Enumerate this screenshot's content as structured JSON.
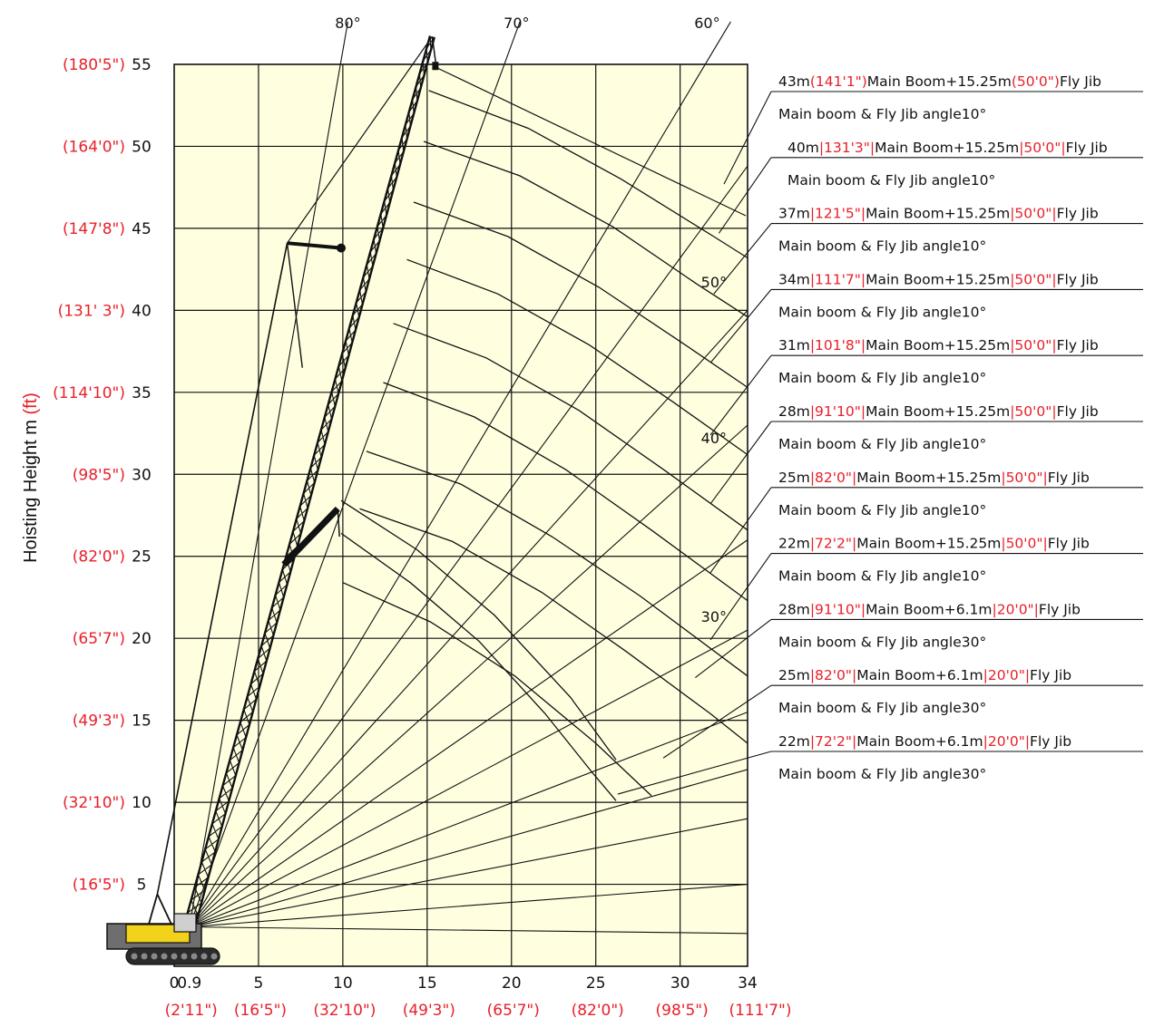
{
  "chart_data": {
    "type": "line",
    "ylabel": {
      "text": "Hoisting Height  m ",
      "unit": "(ft)"
    },
    "xlim": [
      0,
      34
    ],
    "ylim": [
      0,
      55
    ],
    "x_ticks": [
      {
        "value": 0,
        "label": "0",
        "ft": ""
      },
      {
        "value": 0.9,
        "label": "0.9",
        "ft": "(2'11\")"
      },
      {
        "value": 5,
        "label": "5",
        "ft": "(16'5\")"
      },
      {
        "value": 10,
        "label": "10",
        "ft": "(32'10\")"
      },
      {
        "value": 15,
        "label": "15",
        "ft": "(49'3\")"
      },
      {
        "value": 20,
        "label": "20",
        "ft": "(65'7\")"
      },
      {
        "value": 25,
        "label": "25",
        "ft": "(82'0\")"
      },
      {
        "value": 30,
        "label": "30",
        "ft": "(98'5\")"
      },
      {
        "value": 34,
        "label": "34",
        "ft": "(111'7\")"
      }
    ],
    "y_ticks": [
      {
        "value": 5,
        "label": "5",
        "ft": "(16'5\")"
      },
      {
        "value": 10,
        "label": "10",
        "ft": "(32'10\")"
      },
      {
        "value": 15,
        "label": "15",
        "ft": "(49'3\")"
      },
      {
        "value": 20,
        "label": "20",
        "ft": "(65'7\")"
      },
      {
        "value": 25,
        "label": "25",
        "ft": "(82'0\")"
      },
      {
        "value": 30,
        "label": "30",
        "ft": "(98'5\")"
      },
      {
        "value": 35,
        "label": "35",
        "ft": "(114'10\")"
      },
      {
        "value": 40,
        "label": "40",
        "ft": "(131'  3\")"
      },
      {
        "value": 45,
        "label": "45",
        "ft": "(147'8\")"
      },
      {
        "value": 50,
        "label": "50",
        "ft": "(164'0\")"
      },
      {
        "value": 55,
        "label": "55",
        "ft": "(180'5\")"
      }
    ],
    "angle_labels": [
      {
        "text": "80°",
        "x": 10.3,
        "y": 57.2
      },
      {
        "text": "70°",
        "x": 20.3,
        "y": 57.2
      },
      {
        "text": "60°",
        "x": 31.6,
        "y": 57.2
      },
      {
        "text": "50°",
        "x": 32.0,
        "y": 41.4
      },
      {
        "text": "40°",
        "x": 32.0,
        "y": 31.9
      },
      {
        "text": "30°",
        "x": 32.0,
        "y": 21.0
      }
    ],
    "curves": [
      {
        "pts": [
          [
            15.1,
            53.4
          ],
          [
            21.0,
            51.1
          ],
          [
            26.5,
            48.0
          ],
          [
            32.0,
            44.5
          ],
          [
            34.0,
            43.2
          ]
        ]
      },
      {
        "pts": [
          [
            14.8,
            50.3
          ],
          [
            20.5,
            48.2
          ],
          [
            26.0,
            45.1
          ],
          [
            31.0,
            41.6
          ],
          [
            34.0,
            39.6
          ]
        ]
      },
      {
        "pts": [
          [
            14.2,
            46.6
          ],
          [
            19.8,
            44.5
          ],
          [
            25.2,
            41.4
          ],
          [
            30.3,
            37.9
          ],
          [
            34.0,
            35.3
          ]
        ]
      },
      {
        "pts": [
          [
            13.8,
            43.1
          ],
          [
            19.2,
            41.0
          ],
          [
            24.6,
            37.9
          ],
          [
            29.6,
            34.4
          ],
          [
            34.0,
            31.2
          ]
        ]
      },
      {
        "pts": [
          [
            13.0,
            39.2
          ],
          [
            18.5,
            37.1
          ],
          [
            24.0,
            33.9
          ],
          [
            29.0,
            30.3
          ],
          [
            34.0,
            26.6
          ]
        ]
      },
      {
        "pts": [
          [
            12.4,
            35.6
          ],
          [
            17.8,
            33.5
          ],
          [
            23.2,
            30.3
          ],
          [
            28.3,
            26.6
          ],
          [
            34.0,
            22.3
          ]
        ]
      },
      {
        "pts": [
          [
            11.4,
            31.4
          ],
          [
            17.0,
            29.4
          ],
          [
            22.4,
            26.2
          ],
          [
            27.6,
            22.6
          ],
          [
            34.0,
            17.7
          ]
        ]
      },
      {
        "pts": [
          [
            11.0,
            27.9
          ],
          [
            16.5,
            25.9
          ],
          [
            21.8,
            22.8
          ],
          [
            26.8,
            19.2
          ],
          [
            31.8,
            15.4
          ],
          [
            34.0,
            13.6
          ]
        ]
      },
      {
        "pts": [
          [
            10.0,
            23.4
          ],
          [
            15.2,
            21.0
          ],
          [
            20.2,
            17.7
          ],
          [
            25.0,
            13.6
          ],
          [
            28.3,
            10.4
          ]
        ]
      },
      {
        "pts": [
          [
            9.9,
            28.4
          ],
          [
            14.4,
            25.4
          ],
          [
            19.0,
            21.4
          ],
          [
            23.5,
            16.4
          ],
          [
            26.2,
            12.6
          ]
        ]
      },
      {
        "pts": [
          [
            9.9,
            26.4
          ],
          [
            14.0,
            23.4
          ],
          [
            18.1,
            19.8
          ],
          [
            22.0,
            15.4
          ],
          [
            24.8,
            11.8
          ],
          [
            26.2,
            10.1
          ]
        ]
      }
    ],
    "rays": [
      {
        "to": [
          10.3,
          57.6
        ]
      },
      {
        "to": [
          20.5,
          57.6
        ]
      },
      {
        "to": [
          33.0,
          57.6
        ]
      },
      {
        "to": [
          34.0,
          48.8
        ]
      },
      {
        "to": [
          34.0,
          40.0
        ]
      },
      {
        "to": [
          34.0,
          33.0
        ]
      },
      {
        "to": [
          34.0,
          26.0
        ]
      },
      {
        "to": [
          34.0,
          20.5
        ]
      },
      {
        "to": [
          34.0,
          15.5
        ]
      },
      {
        "to": [
          34.0,
          12.0
        ]
      },
      {
        "to": [
          34.0,
          9.0
        ]
      },
      {
        "to": [
          34.0,
          5.0
        ]
      },
      {
        "to": [
          34.0,
          2.0
        ]
      }
    ],
    "callouts": [
      {
        "main_m": "43m",
        "main_ft": "(141'1\")",
        "boom": "Main Boom+15.25m",
        "jib_ft": "(50'0\")",
        "tail": "Fly Jib",
        "angle": "Main boom & Fly Jib angle10°",
        "ax": 32.6,
        "ay": 47.7
      },
      {
        "main_m": "40m",
        "main_ft": "|131'3\"|",
        "boom": "Main Boom+15.25m",
        "jib_ft": "|50'0\"|",
        "tail": "Fly Jib",
        "angle": "Main boom & Fly Jib angle10°",
        "ax": 32.3,
        "ay": 44.7
      },
      {
        "main_m": "37m",
        "main_ft": "|121'5\"|",
        "boom": "Main Boom+15.25m",
        "jib_ft": "|50'0\"|",
        "tail": "Fly Jib",
        "angle": "Main boom & Fly Jib angle10°",
        "ax": 32.0,
        "ay": 41.0
      },
      {
        "main_m": "34m",
        "main_ft": "|111'7\"|",
        "boom": "Main Boom+15.25m",
        "jib_ft": "|50'0\"|",
        "tail": "Fly Jib",
        "angle": "Main boom & Fly Jib angle10°",
        "ax": 31.8,
        "ay": 36.8
      },
      {
        "main_m": "31m",
        "main_ft": "|101'8\"|",
        "boom": "Main Boom+15.25m",
        "jib_ft": "|50'0\"|",
        "tail": "Fly Jib",
        "angle": "Main boom & Fly Jib angle10°",
        "ax": 31.8,
        "ay": 32.4
      },
      {
        "main_m": "28m",
        "main_ft": "|91'10\"|",
        "boom": "Main Boom+15.25m",
        "jib_ft": "|50'0\"|",
        "tail": "Fly Jib",
        "angle": "Main boom & Fly Jib angle10°",
        "ax": 31.8,
        "ay": 28.2
      },
      {
        "main_m": "25m",
        "main_ft": "|82'0\"|",
        "boom": "Main Boom+15.25m",
        "jib_ft": "|50'0\"|",
        "tail": "Fly Jib",
        "angle": "Main boom & Fly Jib angle10°",
        "ax": 31.8,
        "ay": 24.0
      },
      {
        "main_m": "22m",
        "main_ft": "|72'2\"|",
        "boom": "Main Boom+15.25m",
        "jib_ft": "|50'0\"|",
        "tail": "Fly Jib",
        "angle": "Main boom & Fly Jib angle10°",
        "ax": 31.8,
        "ay": 19.9
      },
      {
        "main_m": "28m",
        "main_ft": "|91'10\"|",
        "boom": "Main Boom+6.1m",
        "jib_ft": "|20'0\"|",
        "tail": "Fly Jib",
        "angle": "Main boom & Fly Jib angle30°",
        "ax": 30.9,
        "ay": 17.6
      },
      {
        "main_m": "25m",
        "main_ft": "|82'0\"|",
        "boom": "Main Boom+6.1m",
        "jib_ft": "|20'0\"|",
        "tail": "Fly Jib",
        "angle": "Main boom & Fly Jib angle30°",
        "ax": 29.0,
        "ay": 12.7
      },
      {
        "main_m": "22m",
        "main_ft": "|72'2\"|",
        "boom": "Main Boom+6.1m",
        "jib_ft": "|20'0\"|",
        "tail": "Fly Jib",
        "angle": "Main boom & Fly Jib angle30°",
        "ax": 26.3,
        "ay": 10.5
      }
    ],
    "colors": {
      "grid_fill": "#ffffe0",
      "ft_text": "#e8202a",
      "ink": "#111111",
      "crane_yellow": "#f2d21b",
      "crane_grey": "#6e6e6e"
    }
  }
}
